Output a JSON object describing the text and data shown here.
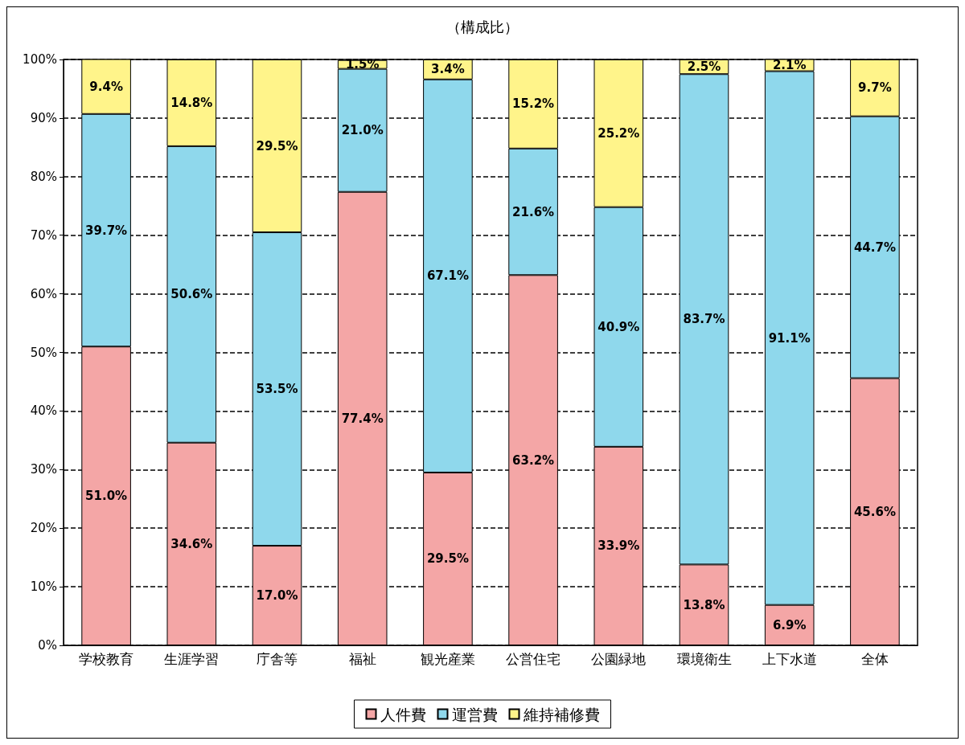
{
  "chart_data": {
    "type": "bar",
    "title": "（構成比）",
    "stacked": true,
    "categories": [
      "学校教育",
      "生涯学習",
      "庁舎等",
      "福祉",
      "観光産業",
      "公営住宅",
      "公園緑地",
      "環境衛生",
      "上下水道",
      "全体"
    ],
    "series": [
      {
        "name": "人件費",
        "color": "#f4a6a6",
        "values": [
          51.0,
          34.6,
          17.0,
          77.4,
          29.5,
          63.2,
          33.9,
          13.8,
          6.9,
          45.6
        ],
        "value_labels": [
          "51.0%",
          "34.6%",
          "17.0%",
          "77.4%",
          "29.5%",
          "63.2%",
          "33.9%",
          "13.8%",
          "6.9%",
          "45.6%"
        ]
      },
      {
        "name": "運営費",
        "color": "#8fd8ec",
        "values": [
          39.7,
          50.6,
          53.5,
          21.0,
          67.1,
          21.6,
          40.9,
          83.7,
          91.1,
          44.7
        ],
        "value_labels": [
          "39.7%",
          "50.6%",
          "53.5%",
          "21.0%",
          "67.1%",
          "21.6%",
          "40.9%",
          "83.7%",
          "91.1%",
          "44.7%"
        ]
      },
      {
        "name": "維持補修費",
        "color": "#fff48a",
        "values": [
          9.4,
          14.8,
          29.5,
          1.5,
          3.4,
          15.2,
          25.2,
          2.5,
          2.1,
          9.7
        ],
        "value_labels": [
          "9.4%",
          "14.8%",
          "29.5%",
          "1.5%",
          "3.4%",
          "15.2%",
          "25.2%",
          "2.5%",
          "2.1%",
          "9.7%"
        ]
      }
    ],
    "ylim": [
      0,
      100
    ],
    "yticks": [
      {
        "value": 0,
        "label": "0%"
      },
      {
        "value": 10,
        "label": "10%"
      },
      {
        "value": 20,
        "label": "20%"
      },
      {
        "value": 30,
        "label": "30%"
      },
      {
        "value": 40,
        "label": "40%"
      },
      {
        "value": 50,
        "label": "50%"
      },
      {
        "value": 60,
        "label": "60%"
      },
      {
        "value": 70,
        "label": "70%"
      },
      {
        "value": 80,
        "label": "80%"
      },
      {
        "value": 90,
        "label": "90%"
      },
      {
        "value": 100,
        "label": "100%"
      }
    ],
    "grid": "y",
    "legend": "bottom"
  }
}
